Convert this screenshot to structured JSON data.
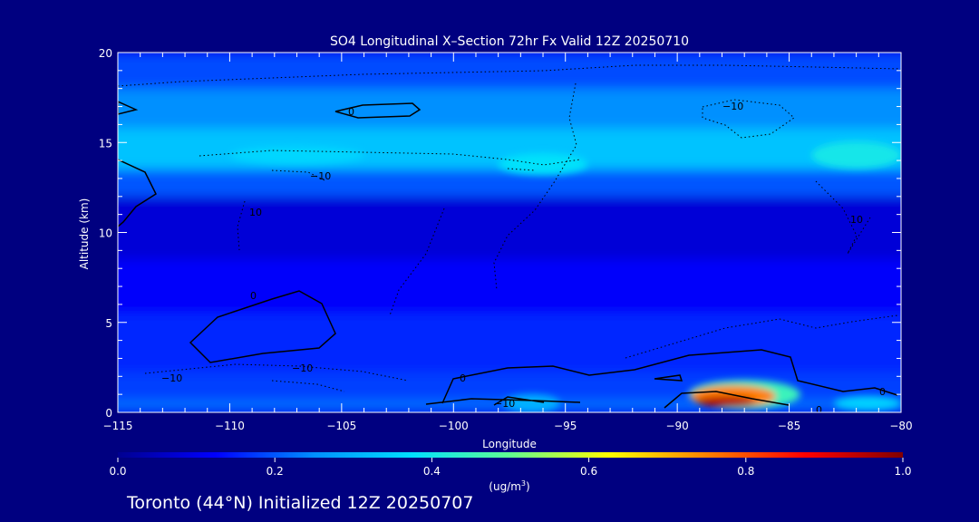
{
  "chart_data": {
    "type": "heatmap",
    "title": "SO4 Longitudinal X–Section 72hr  Fx Valid 12Z 20250710",
    "xlabel": "Longitude",
    "ylabel": "Altitude (km)",
    "xlim": [
      -115,
      -80
    ],
    "ylim": [
      0,
      20
    ],
    "x_ticks": [
      -115,
      -110,
      -105,
      -100,
      -95,
      -90,
      -85,
      -80
    ],
    "x_tick_labels": [
      "−115",
      "−110",
      "−105",
      "−100",
      "−95",
      "−90",
      "−85",
      "−80"
    ],
    "y_ticks": [
      0,
      5,
      10,
      15,
      20
    ],
    "y_tick_labels": [
      "0",
      "5",
      "10",
      "15",
      "20"
    ],
    "colorbar": {
      "min": 0.0,
      "max": 1.0,
      "ticks": [
        0.0,
        0.2,
        0.4,
        0.6,
        0.8,
        1.0
      ],
      "tick_labels": [
        "0.0",
        "0.2",
        "0.4",
        "0.6",
        "0.8",
        "1.0"
      ],
      "unit_label": "(ug/m",
      "unit_superscript": "3",
      "unit_close": ")",
      "colors": [
        "#000090",
        "#0000ff",
        "#0090ff",
        "#00e0ff",
        "#60ff90",
        "#ffff00",
        "#ff8000",
        "#ff0000",
        "#800000"
      ]
    },
    "contour_labels": [
      "0",
      "0",
      "−10",
      "−10",
      "10",
      "−10",
      "−10",
      "0",
      "−10",
      "0",
      "0",
      "10"
    ],
    "subtitle": "Toronto (44°N) Initialized 12Z 20250707",
    "concentration_bands": [
      {
        "alt_bottom": 0.0,
        "alt_top": 0.7,
        "value": 0.22
      },
      {
        "alt_bottom": 0.7,
        "alt_top": 2.2,
        "value": 0.18
      },
      {
        "alt_bottom": 2.2,
        "alt_top": 5.5,
        "value": 0.16
      },
      {
        "alt_bottom": 5.5,
        "alt_top": 8.5,
        "value": 0.12
      },
      {
        "alt_bottom": 8.5,
        "alt_top": 12.0,
        "value": 0.08
      },
      {
        "alt_bottom": 12.0,
        "alt_top": 13.5,
        "value": 0.2
      },
      {
        "alt_bottom": 13.5,
        "alt_top": 15.8,
        "value": 0.33
      },
      {
        "alt_bottom": 15.8,
        "alt_top": 18.0,
        "value": 0.25
      },
      {
        "alt_bottom": 18.0,
        "alt_top": 20.0,
        "value": 0.19
      }
    ],
    "hotspots": [
      {
        "lon": -87.8,
        "alt": 0.6,
        "value": 0.95,
        "lon_span": 2.6,
        "alt_span": 0.6
      },
      {
        "lon": -87.5,
        "alt": 0.9,
        "value": 0.75,
        "lon_span": 3.8,
        "alt_span": 1.2
      },
      {
        "lon": -87.0,
        "alt": 1.0,
        "value": 0.45,
        "lon_span": 5.0,
        "alt_span": 1.6
      },
      {
        "lon": -96.5,
        "alt": 0.5,
        "value": 0.3,
        "lon_span": 2.5,
        "alt_span": 1.0
      },
      {
        "lon": -81.5,
        "alt": 0.5,
        "value": 0.35,
        "lon_span": 3.0,
        "alt_span": 0.8
      },
      {
        "lon": -82.0,
        "alt": 14.3,
        "value": 0.4,
        "lon_span": 4.0,
        "alt_span": 1.5
      },
      {
        "lon": -96.0,
        "alt": 13.8,
        "value": 0.38,
        "lon_span": 4.0,
        "alt_span": 1.2
      },
      {
        "lon": -107.0,
        "alt": 14.3,
        "value": 0.36,
        "lon_span": 6.0,
        "alt_span": 1.0
      }
    ]
  }
}
